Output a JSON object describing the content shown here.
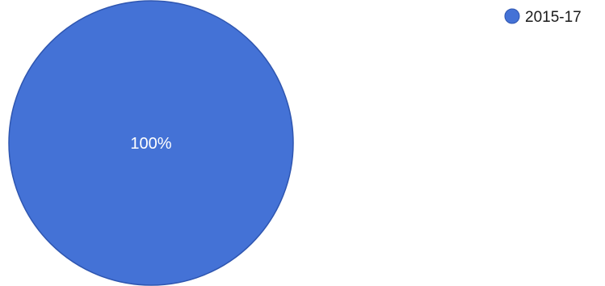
{
  "chart_data": {
    "type": "pie",
    "slices": [
      {
        "name": "2015-17",
        "value": 100,
        "label": "100%",
        "color": "#4472d6"
      }
    ],
    "legend": {
      "position": "top-right",
      "entries": [
        "2015-17"
      ]
    }
  }
}
